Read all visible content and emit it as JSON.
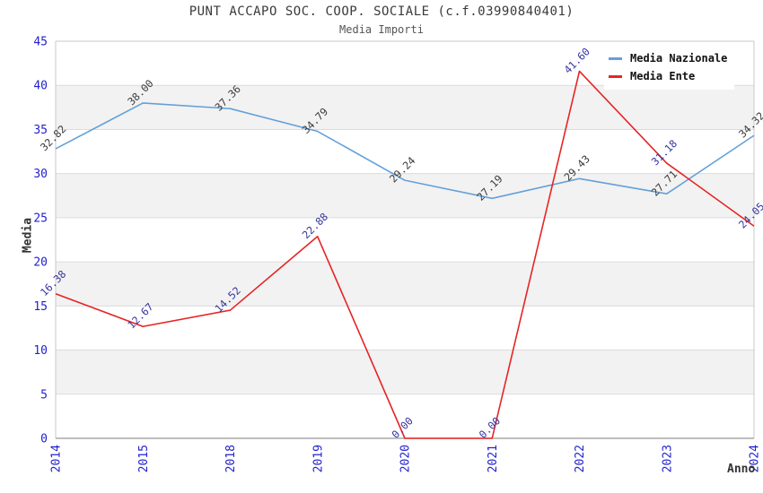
{
  "chart_data": {
    "type": "line",
    "title": "PUNT ACCAPO SOC. COOP. SOCIALE (c.f.03990840401)",
    "subtitle": "Media Importi",
    "xlabel": "Anno",
    "ylabel": "Media",
    "ylim": [
      0,
      45
    ],
    "ytick_step": 5,
    "grid": true,
    "legend_position": "top-right",
    "categories": [
      "2014",
      "2015",
      "2018",
      "2019",
      "2020",
      "2021",
      "2022",
      "2023",
      "2024"
    ],
    "series": [
      {
        "name": "Media Nazionale",
        "color": "#64a0d8",
        "label_color": "#3a3a3a",
        "values": [
          32.82,
          38.0,
          37.36,
          34.79,
          29.24,
          27.19,
          29.43,
          27.71,
          34.32
        ]
      },
      {
        "name": "Media Ente",
        "color": "#e62424",
        "label_color": "#3333a0",
        "values": [
          16.38,
          12.67,
          14.52,
          22.88,
          0.0,
          0.0,
          41.6,
          31.18,
          24.05
        ]
      }
    ],
    "colors": {
      "tick_label": "#2222cc",
      "band_fill": "#f2f2f2",
      "gridline": "#dcdcdc",
      "frame": "#c9c9c9",
      "bottom_axis": "#999999"
    }
  }
}
